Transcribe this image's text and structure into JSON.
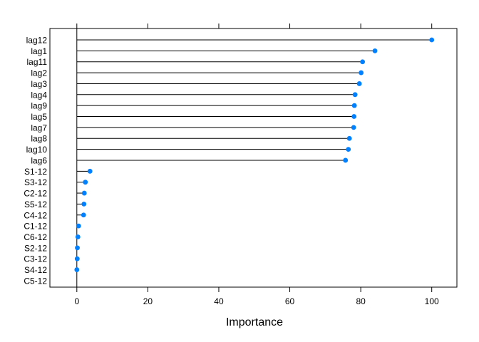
{
  "chart_data": {
    "type": "dotplot",
    "title": "",
    "xlabel": "Importance",
    "ylabel": "",
    "xlim": [
      -7,
      107
    ],
    "xticks": [
      0,
      20,
      40,
      60,
      80,
      100
    ],
    "grid": false,
    "point_color": "#0080ff",
    "categories": [
      "lag12",
      "lag1",
      "lag11",
      "lag2",
      "lag3",
      "lag4",
      "lag9",
      "lag5",
      "lag7",
      "lag8",
      "lag10",
      "lag6",
      "S1-12",
      "S3-12",
      "C2-12",
      "S5-12",
      "C4-12",
      "C1-12",
      "C6-12",
      "S2-12",
      "C3-12",
      "S4-12",
      "C5-12"
    ],
    "values": [
      100,
      84.0,
      80.5,
      80.1,
      79.6,
      78.4,
      78.2,
      78.1,
      78.0,
      76.8,
      76.5,
      75.7,
      3.7,
      2.4,
      2.1,
      2.0,
      1.9,
      0.5,
      0.3,
      0.15,
      0.1,
      0.0,
      null
    ]
  }
}
